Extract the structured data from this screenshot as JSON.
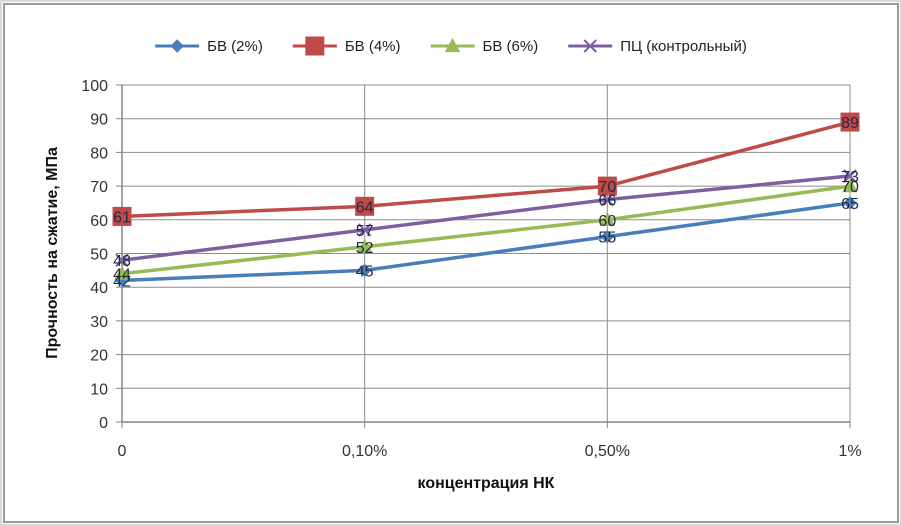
{
  "chart_data": {
    "type": "line",
    "categories": [
      "0",
      "0,10%",
      "0,50%",
      "1%"
    ],
    "xlabel": "концентрация НК",
    "ylabel": "Прочность на сжатие, МПа",
    "ylim": [
      0,
      100
    ],
    "yticks": [
      "0",
      "10",
      "20",
      "30",
      "40",
      "50",
      "60",
      "70",
      "80",
      "90",
      "100"
    ],
    "grid": true,
    "legend_position": "top",
    "series": [
      {
        "name": "БВ (2%)",
        "values": [
          42,
          45,
          55,
          65
        ],
        "labels": [
          "42",
          "45",
          "55",
          "65"
        ],
        "color": "#4a7ebb",
        "marker": "diamond"
      },
      {
        "name": "БВ (4%)",
        "values": [
          61,
          64,
          70,
          89
        ],
        "labels": [
          "61",
          "64",
          "70",
          "89"
        ],
        "color": "#be4b48",
        "marker": "square"
      },
      {
        "name": "БВ (6%)",
        "values": [
          44,
          52,
          60,
          70
        ],
        "labels": [
          "44",
          "52",
          "60",
          "70"
        ],
        "color": "#98b954",
        "marker": "triangle"
      },
      {
        "name": "ПЦ (контрольный)",
        "values": [
          48,
          57,
          66,
          73
        ],
        "labels": [
          "48",
          "57",
          "66",
          "73"
        ],
        "color": "#7d60a0",
        "marker": "x"
      }
    ]
  }
}
